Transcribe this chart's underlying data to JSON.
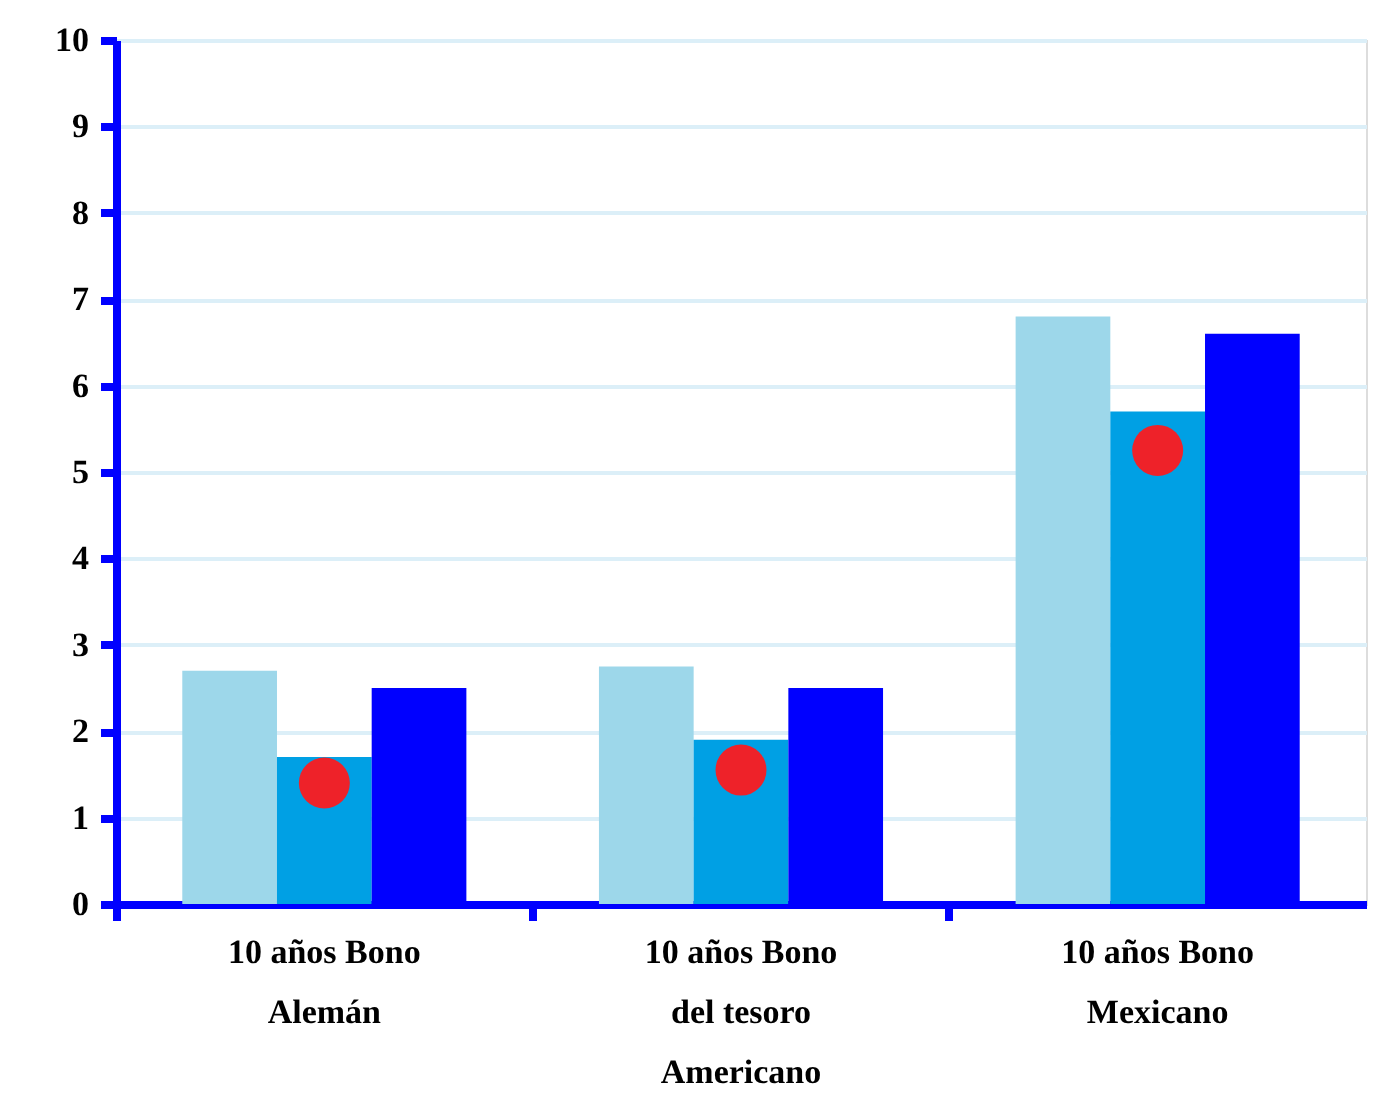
{
  "chart_data": {
    "type": "bar",
    "categories": [
      "10 años Bono\nAlemán",
      "10 años Bono\ndel tesoro\nAmericano",
      "10 años Bono\nMexicano"
    ],
    "series": [
      {
        "color": "#9dd7ea",
        "values": [
          2.7,
          2.75,
          6.8
        ]
      },
      {
        "color": "#00a0e4",
        "values": [
          1.7,
          1.9,
          5.7
        ]
      },
      {
        "color": "#0000ff",
        "values": [
          2.5,
          2.5,
          6.6
        ]
      },
      {
        "type": "scatter",
        "color": "#ee2229",
        "x": [
          "10 años Bono\nAlemán",
          "10 años Bono\ndel tesoro\nAmericano",
          "10 años Bono\nMexicano"
        ],
        "values": [
          1.4,
          1.55,
          5.25
        ]
      }
    ],
    "ylim": [
      0,
      10
    ],
    "yticks": [
      0,
      1,
      2,
      3,
      4,
      5,
      6,
      7,
      8,
      9,
      10
    ],
    "grid": "y",
    "legend": false,
    "marker": "circle"
  }
}
